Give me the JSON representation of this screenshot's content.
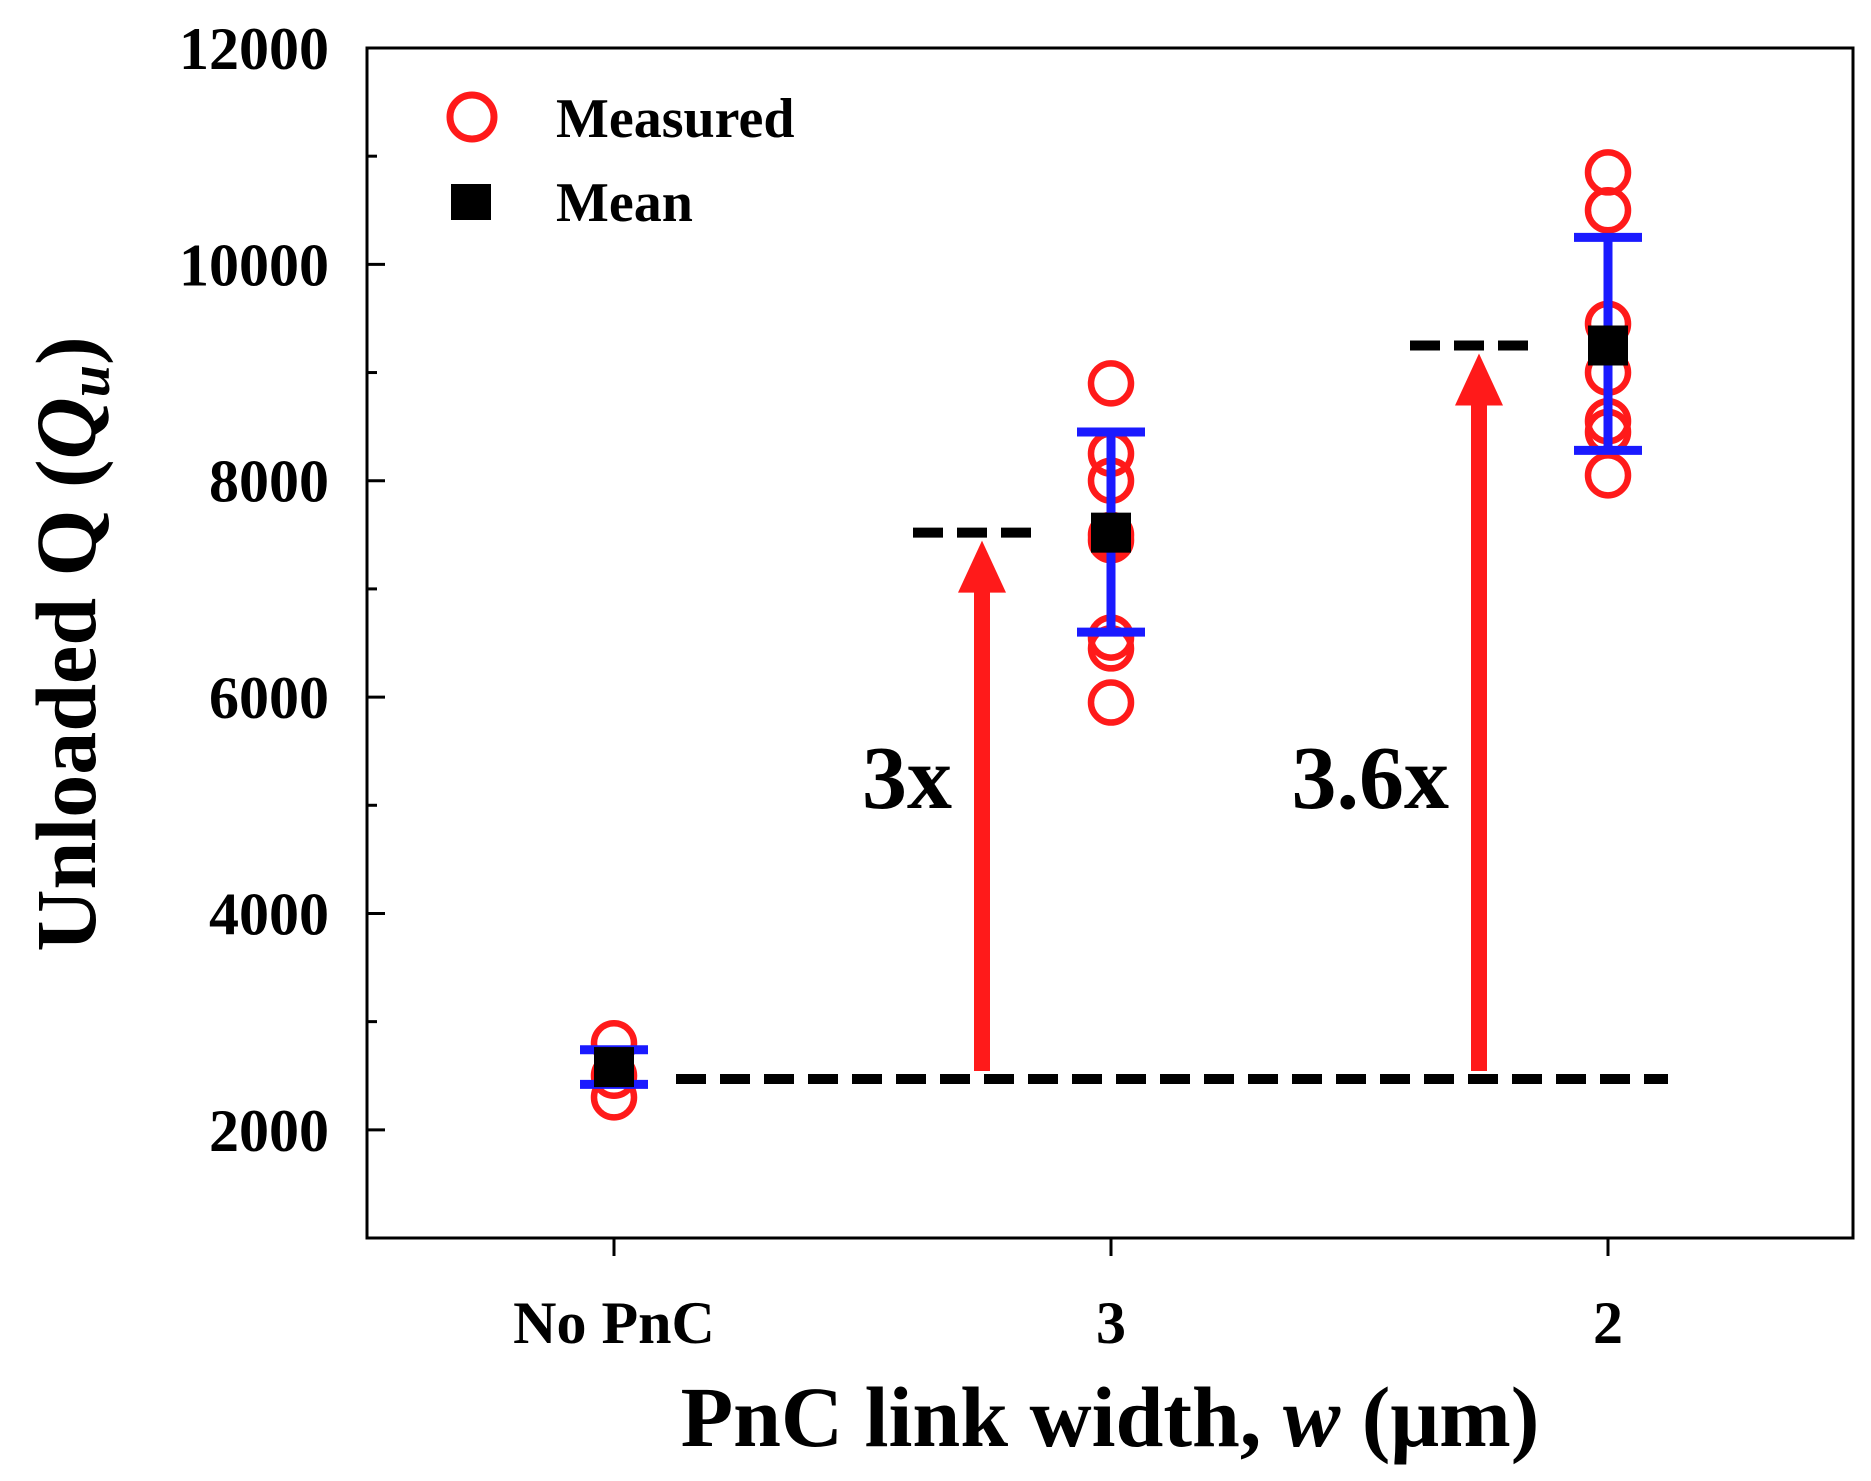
{
  "chart_data": {
    "type": "scatter",
    "title": "",
    "xlabel": {
      "main": "PnC link width, ",
      "italic": "w",
      "unit": " (μm)"
    },
    "ylabel": {
      "main": "Unloaded Q (",
      "italic": "Q",
      "subscript": "u",
      "close": ")"
    },
    "categories": [
      "No PnC",
      "3",
      "2"
    ],
    "ylim": [
      1000,
      12000
    ],
    "yticks": [
      2000,
      4000,
      6000,
      8000,
      10000,
      12000
    ],
    "grid": false,
    "legend": {
      "position": "top-left",
      "entries": [
        {
          "label": "Measured",
          "marker": "open-circle",
          "color": "#ff1a1a"
        },
        {
          "label": "Mean",
          "marker": "filled-square",
          "color": "#000000"
        }
      ]
    },
    "series": [
      {
        "name": "Measured",
        "points": [
          {
            "category": "No PnC",
            "values": [
              2300,
              2500,
              2800
            ]
          },
          {
            "category": "3",
            "values": [
              5950,
              6450,
              6550,
              7450,
              7500,
              8000,
              8250,
              8900
            ]
          },
          {
            "category": "2",
            "values": [
              8050,
              8450,
              8550,
              9000,
              9450,
              10500,
              10850
            ]
          }
        ]
      },
      {
        "name": "Mean",
        "points": [
          {
            "category": "No PnC",
            "value": 2580,
            "error_low": 2420,
            "error_high": 2740
          },
          {
            "category": "3",
            "value": 7520,
            "error_low": 6600,
            "error_high": 8450
          },
          {
            "category": "2",
            "value": 9250,
            "error_low": 8280,
            "error_high": 10250
          }
        ]
      }
    ],
    "reference_lines": [
      {
        "style": "dashed",
        "value": 2470,
        "from_category": "No PnC",
        "to_category": "2"
      },
      {
        "style": "dashed",
        "value": 7520,
        "category": "3"
      },
      {
        "style": "dashed",
        "value": 9250,
        "category": "2"
      }
    ],
    "annotations": [
      {
        "text": "3x",
        "from_value": 2470,
        "to_value": 7520,
        "category": "3",
        "arrow_color": "#ff1a1a"
      },
      {
        "text": "3.6x",
        "from_value": 2470,
        "to_value": 9250,
        "category": "2",
        "arrow_color": "#ff1a1a"
      }
    ],
    "colors": {
      "measured": "#ff1a1a",
      "mean": "#000000",
      "error_bar": "#1a1aff",
      "arrow": "#ff1a1a",
      "axis": "#000000"
    }
  }
}
